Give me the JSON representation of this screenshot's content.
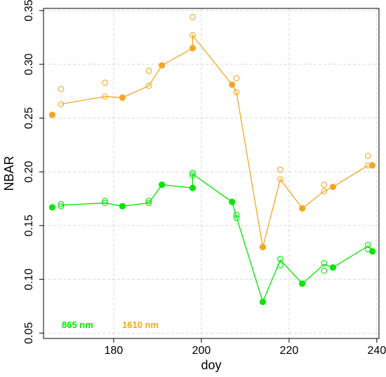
{
  "chart_data": {
    "type": "scatter",
    "xlabel": "doy",
    "ylabel": "NBAR",
    "xlim": [
      164,
      240.5
    ],
    "ylim": [
      0.045,
      0.352
    ],
    "grid": true,
    "x_ticks": [
      180,
      200,
      220,
      240
    ],
    "x_tick_labels": [
      "180",
      "200",
      "220",
      "240"
    ],
    "y_ticks": [
      0.05,
      0.1,
      0.15,
      0.2,
      0.25,
      0.3,
      0.35
    ],
    "y_tick_labels": [
      "0.05",
      "0.10",
      "0.15",
      "0.20",
      "0.25",
      "0.30",
      "0.35"
    ],
    "series": [
      {
        "name": "865 nm",
        "color": "#00e600",
        "line": [
          [
            168,
            0.169
          ],
          [
            178,
            0.171
          ],
          [
            182,
            0.168
          ],
          [
            188,
            0.171
          ],
          [
            191,
            0.188
          ],
          [
            198,
            0.185
          ],
          [
            198,
            0.198
          ],
          [
            207,
            0.172
          ],
          [
            208,
            0.158
          ],
          [
            214,
            0.079
          ],
          [
            218,
            0.118
          ],
          [
            223,
            0.096
          ],
          [
            228,
            0.114
          ],
          [
            230,
            0.111
          ],
          [
            238,
            0.131
          ],
          [
            239,
            0.126
          ]
        ],
        "filled": [
          [
            166,
            0.167
          ],
          [
            182,
            0.168
          ],
          [
            191,
            0.188
          ],
          [
            198,
            0.185
          ],
          [
            207,
            0.172
          ],
          [
            214,
            0.079
          ],
          [
            223,
            0.096
          ],
          [
            230,
            0.111
          ],
          [
            239,
            0.126
          ]
        ],
        "open": [
          [
            168,
            0.17
          ],
          [
            168,
            0.168
          ],
          [
            178,
            0.173
          ],
          [
            178,
            0.171
          ],
          [
            188,
            0.173
          ],
          [
            188,
            0.171
          ],
          [
            198,
            0.199
          ],
          [
            198,
            0.197
          ],
          [
            208,
            0.16
          ],
          [
            208,
            0.157
          ],
          [
            218,
            0.119
          ],
          [
            218,
            0.113
          ],
          [
            228,
            0.115
          ],
          [
            228,
            0.108
          ],
          [
            238,
            0.132
          ],
          [
            238,
            0.128
          ]
        ]
      },
      {
        "name": "1610 nm",
        "color": "#f5a623",
        "line": [
          [
            168,
            0.263
          ],
          [
            178,
            0.27
          ],
          [
            182,
            0.269
          ],
          [
            188,
            0.28
          ],
          [
            191,
            0.299
          ],
          [
            198,
            0.315
          ],
          [
            198,
            0.327
          ],
          [
            207,
            0.281
          ],
          [
            208,
            0.274
          ],
          [
            214,
            0.13
          ],
          [
            218,
            0.193
          ],
          [
            223,
            0.166
          ],
          [
            228,
            0.182
          ],
          [
            230,
            0.186
          ],
          [
            238,
            0.206
          ],
          [
            239,
            0.206
          ]
        ],
        "filled": [
          [
            166,
            0.253
          ],
          [
            182,
            0.269
          ],
          [
            191,
            0.299
          ],
          [
            198,
            0.315
          ],
          [
            207,
            0.281
          ],
          [
            214,
            0.13
          ],
          [
            223,
            0.166
          ],
          [
            230,
            0.186
          ],
          [
            239,
            0.206
          ]
        ],
        "open": [
          [
            168,
            0.277
          ],
          [
            168,
            0.263
          ],
          [
            178,
            0.283
          ],
          [
            178,
            0.27
          ],
          [
            188,
            0.294
          ],
          [
            188,
            0.28
          ],
          [
            198,
            0.344
          ],
          [
            198,
            0.327
          ],
          [
            208,
            0.287
          ],
          [
            208,
            0.274
          ],
          [
            218,
            0.202
          ],
          [
            218,
            0.193
          ],
          [
            228,
            0.188
          ],
          [
            228,
            0.182
          ],
          [
            238,
            0.215
          ],
          [
            238,
            0.206
          ]
        ]
      }
    ],
    "legend_placement": "bottom-left"
  }
}
